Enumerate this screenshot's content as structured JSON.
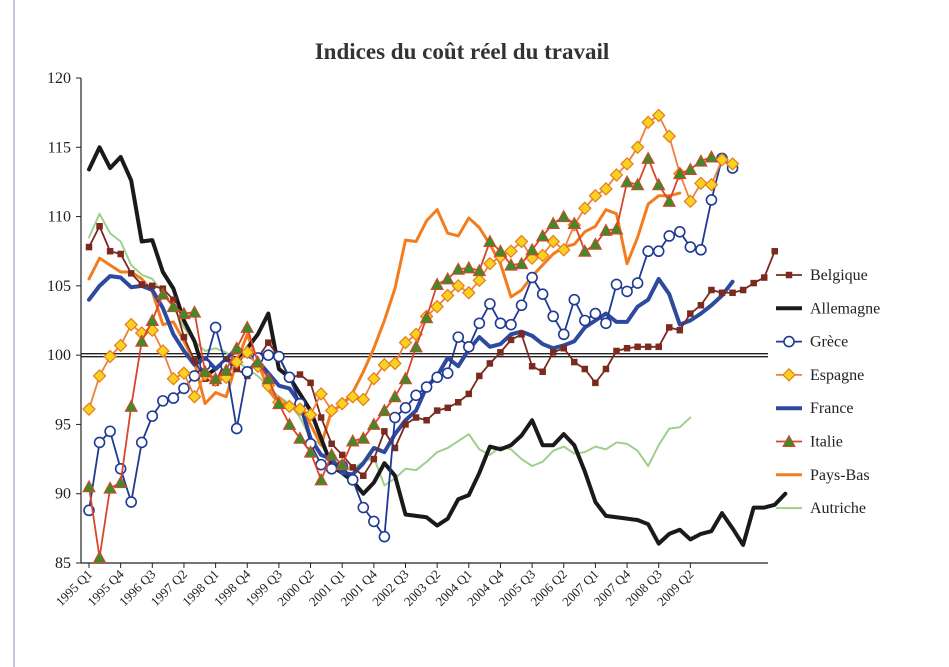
{
  "chart_data": {
    "type": "line",
    "title": "Indices du coût réel du travail",
    "xlabel": "",
    "ylabel": "",
    "ylim": [
      85,
      120
    ],
    "yticks": [
      "85",
      "90",
      "95",
      "100",
      "105",
      "110",
      "115",
      "120"
    ],
    "xticks": [
      "1995 Q1",
      "1995 Q4",
      "1996 Q3",
      "1997 Q2",
      "1998 Q1",
      "1998 Q4",
      "1999 Q3",
      "2000 Q2",
      "2001 Q1",
      "2001 Q4",
      "2002 Q3",
      "2003 Q2",
      "2004 Q1",
      "2004 Q4",
      "2005 Q3",
      "2006 Q2",
      "2007 Q1",
      "2007 Q4",
      "2008 Q3",
      "2009 Q2"
    ],
    "reference_line": 100,
    "legend_position": "right",
    "series": [
      {
        "name": "Belgique",
        "color": "#7a2a1e",
        "marker": "square",
        "width": 1.8,
        "values": [
          107.8,
          109.3,
          107.5,
          107.3,
          105.9,
          105.1,
          105,
          104.8,
          104,
          101.3,
          99.6,
          98.3,
          98,
          99.7,
          99,
          98.5,
          99.8,
          100.9,
          99.9,
          98.3,
          98.6,
          98,
          95.5,
          93.6,
          92.8,
          91.9,
          91.3,
          92.5,
          94.5,
          93.3,
          95,
          95.5,
          95.3,
          96,
          96.2,
          96.6,
          97.2,
          98.5,
          99.4,
          100.2,
          101.1,
          101.5,
          99.2,
          98.8,
          100.2,
          100.5,
          99.5,
          99,
          98,
          99,
          100.3,
          100.5,
          100.6,
          100.6,
          100.6,
          102,
          101.8,
          103,
          103.6,
          104.7,
          104.5,
          104.5,
          104.7,
          105.2,
          105.6,
          107.5
        ]
      },
      {
        "name": "Allemagne",
        "color": "#1a1a1a",
        "marker": "none",
        "width": 4,
        "values": [
          113.4,
          115,
          113.5,
          114.3,
          112.6,
          108.2,
          108.3,
          106,
          104.8,
          102.5,
          101,
          98.5,
          99,
          99.7,
          99.4,
          100.5,
          101.5,
          103,
          99,
          98.4,
          97.2,
          96,
          94,
          92,
          91.5,
          90.9,
          90,
          90.8,
          92.2,
          91.3,
          88.5,
          88.4,
          88.3,
          87.7,
          88.2,
          89.6,
          89.9,
          91.5,
          93.4,
          93.2,
          93.5,
          94.2,
          95.3,
          93.5,
          93.5,
          94.3,
          93.5,
          91.6,
          89.4,
          88.4,
          88.3,
          88.2,
          88.1,
          87.8,
          86.4,
          87.1,
          87.4,
          86.7,
          87.1,
          87.3,
          88.6,
          87.5,
          86.3,
          89,
          89,
          89.2,
          90
        ]
      },
      {
        "name": "Grèce",
        "color": "#1f3a93",
        "marker": "circle",
        "width": 1.8,
        "values": [
          88.8,
          93.7,
          94.5,
          91.8,
          89.4,
          93.7,
          95.6,
          96.7,
          96.9,
          97.6,
          98.5,
          99.3,
          102,
          99.2,
          94.7,
          98.8,
          99.8,
          100,
          99.9,
          98.4,
          96.5,
          93.6,
          92.1,
          91.8,
          92,
          91,
          89,
          88,
          86.9,
          95.5,
          96.2,
          97.1,
          97.7,
          98.4,
          98.7,
          101.3,
          100.6,
          102.3,
          103.7,
          102.3,
          102.2,
          103.6,
          105.6,
          104.4,
          102.8,
          101.5,
          104,
          102.5,
          103,
          102.3,
          105.1,
          104.6,
          105.2,
          107.5,
          107.5,
          108.6,
          108.9,
          107.8,
          107.6,
          111.2,
          114.2,
          113.5
        ]
      },
      {
        "name": "Espagne",
        "color": "#f07f3c",
        "marker": "diamond",
        "width": 1.8,
        "values": [
          96.1,
          98.5,
          99.9,
          100.7,
          102.2,
          101.6,
          101.8,
          100.3,
          98.3,
          98.7,
          97,
          98.6,
          98.2,
          98.4,
          99.5,
          100.2,
          99.2,
          97.8,
          96.6,
          96.3,
          96.1,
          95.7,
          97.2,
          96,
          96.5,
          97,
          96.8,
          98.3,
          99.3,
          99.4,
          100.9,
          101.5,
          102.8,
          103.5,
          104.3,
          105,
          104.5,
          105.4,
          106.6,
          107.1,
          107.5,
          108.2,
          107,
          107.2,
          108.2,
          107.6,
          109.4,
          110.6,
          111.5,
          112,
          113,
          113.8,
          115,
          116.8,
          117.3,
          115.8,
          113.1,
          111.1,
          112.4,
          112.3,
          114.1,
          113.8
        ]
      },
      {
        "name": "France",
        "color": "#2e4a9e",
        "marker": "none",
        "width": 4,
        "values": [
          104,
          105,
          105.7,
          105.6,
          104.9,
          105,
          104.7,
          103.4,
          101.5,
          100.3,
          99.3,
          99.8,
          99,
          99.7,
          100.5,
          100,
          99.6,
          98.7,
          97.8,
          97.6,
          96.5,
          94,
          92.8,
          92.5,
          91.5,
          91.4,
          92.2,
          93.3,
          93,
          94.3,
          95.3,
          96,
          97.7,
          98.5,
          99.8,
          99.2,
          100.4,
          101.3,
          100.6,
          100.8,
          101.5,
          101.7,
          101.4,
          100.8,
          100.5,
          100.7,
          101,
          102,
          102.5,
          103,
          102.4,
          102.4,
          103.5,
          104,
          105.5,
          104.4,
          102.2,
          102.5,
          103,
          103.6,
          104.3,
          105.3
        ]
      },
      {
        "name": "Italie",
        "color": "#d9452b",
        "marker": "triangle",
        "width": 1.8,
        "values": [
          90.5,
          85.4,
          90.4,
          90.8,
          96.3,
          101,
          102.5,
          104.4,
          103.5,
          103,
          103.1,
          98.8,
          98.3,
          98.9,
          100.5,
          102,
          99.5,
          98.3,
          96.5,
          95,
          94,
          93,
          91,
          92.8,
          92.1,
          93.8,
          94,
          95,
          96,
          97,
          98.3,
          100.6,
          102.7,
          105.1,
          105.5,
          106.2,
          106.3,
          106.1,
          108.2,
          107.5,
          106.5,
          106.6,
          107.6,
          108.6,
          109.5,
          110,
          109.5,
          107.5,
          108,
          109,
          109.1,
          112.5,
          112.3,
          114.2,
          112.3,
          111.1,
          113.1,
          113.4,
          114,
          114.3
        ]
      },
      {
        "name": "Pays-Bas",
        "color": "#f37d1e",
        "marker": "none",
        "width": 3,
        "values": [
          105.5,
          107,
          106.5,
          106,
          106,
          105.5,
          104.6,
          102.2,
          102.4,
          101,
          99.5,
          96.5,
          97.3,
          97,
          99.5,
          101.5,
          99.5,
          97.5,
          96.5,
          96.5,
          96.2,
          95,
          93.5,
          96,
          96.4,
          97.3,
          98.8,
          100.5,
          102.5,
          104.8,
          108.3,
          108.2,
          109.7,
          110.5,
          108.8,
          108.6,
          109.9,
          109.2,
          108,
          106.6,
          104.2,
          104.7,
          105.7,
          106.5,
          107.3,
          107.8,
          108,
          108.9,
          109.3,
          110.5,
          110.2,
          106.6,
          108.5,
          110.9,
          111.5,
          111.5,
          111.7
        ]
      },
      {
        "name": "Autriche",
        "color": "#9fd08a",
        "marker": "none",
        "width": 2,
        "values": [
          108.5,
          110.2,
          108.8,
          108.2,
          106.5,
          105.8,
          105.5,
          104.5,
          103.5,
          102,
          101,
          100.3,
          100.5,
          100.2,
          99.6,
          99,
          98.5,
          97.7,
          97,
          96.5,
          95.5,
          94,
          93.5,
          92.5,
          92,
          91.8,
          92.3,
          92.6,
          90.6,
          91.1,
          91.8,
          91.7,
          92.3,
          93,
          93.3,
          93.8,
          94.3,
          93.2,
          92.8,
          93.4,
          93.2,
          92.5,
          92,
          92.3,
          93.1,
          93.4,
          92.9,
          93,
          93.4,
          93.2,
          93.7,
          93.6,
          93.1,
          92,
          93.5,
          94.7,
          94.8,
          95.5
        ]
      }
    ]
  }
}
